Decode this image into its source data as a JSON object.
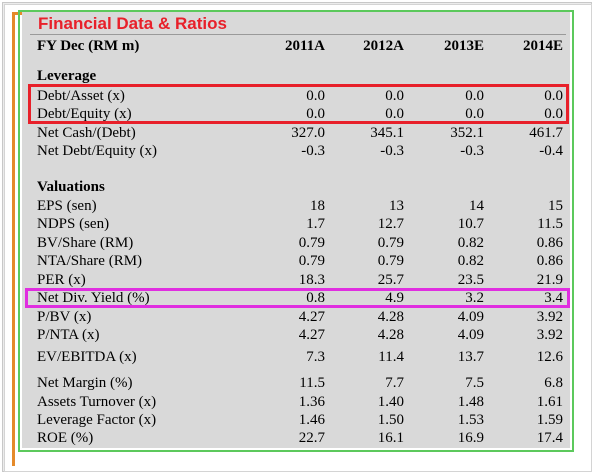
{
  "title": "Financial Data & Ratios",
  "header": {
    "label": "FY Dec (RM m)",
    "columns": [
      "2011A",
      "2012A",
      "2013E",
      "2014E"
    ]
  },
  "sections": [
    {
      "heading": "Leverage",
      "rows": [
        {
          "label": "Debt/Asset (x)",
          "values": [
            "0.0",
            "0.0",
            "0.0",
            "0.0"
          ],
          "highlight": "red"
        },
        {
          "label": "Debt/Equity (x)",
          "values": [
            "0.0",
            "0.0",
            "0.0",
            "0.0"
          ],
          "highlight": "red"
        },
        {
          "label": "Net Cash/(Debt)",
          "values": [
            "327.0",
            "345.1",
            "352.1",
            "461.7"
          ]
        },
        {
          "label": "Net Debt/Equity (x)",
          "values": [
            "-0.3",
            "-0.3",
            "-0.3",
            "-0.4"
          ]
        }
      ]
    },
    {
      "heading": "Valuations",
      "rows": [
        {
          "label": "EPS (sen)",
          "values": [
            "18",
            "13",
            "14",
            "15"
          ]
        },
        {
          "label": "NDPS (sen)",
          "values": [
            "1.7",
            "12.7",
            "10.7",
            "11.5"
          ]
        },
        {
          "label": "BV/Share (RM)",
          "values": [
            "0.79",
            "0.79",
            "0.82",
            "0.86"
          ]
        },
        {
          "label": "NTA/Share (RM)",
          "values": [
            "0.79",
            "0.79",
            "0.82",
            "0.86"
          ]
        },
        {
          "label": "PER (x)",
          "values": [
            "18.3",
            "25.7",
            "23.5",
            "21.9"
          ]
        },
        {
          "label": "Net Div. Yield (%)",
          "values": [
            "0.8",
            "4.9",
            "3.2",
            "3.4"
          ],
          "highlight": "magenta"
        },
        {
          "label": "P/BV (x)",
          "values": [
            "4.27",
            "4.28",
            "4.09",
            "3.92"
          ]
        },
        {
          "label": "P/NTA (x)",
          "values": [
            "4.27",
            "4.28",
            "4.09",
            "3.92"
          ]
        },
        {
          "label": "EV/EBITDA (x)",
          "values": [
            "7.3",
            "11.4",
            "13.7",
            "12.6"
          ]
        }
      ]
    },
    {
      "heading": "",
      "rows": [
        {
          "label": "Net Margin (%)",
          "values": [
            "11.5",
            "7.7",
            "7.5",
            "6.8"
          ]
        },
        {
          "label": "Assets Turnover (x)",
          "values": [
            "1.36",
            "1.40",
            "1.48",
            "1.61"
          ]
        },
        {
          "label": "Leverage Factor (x)",
          "values": [
            "1.46",
            "1.50",
            "1.53",
            "1.59"
          ]
        },
        {
          "label": "ROE (%)",
          "values": [
            "22.7",
            "16.1",
            "16.9",
            "17.4"
          ]
        }
      ]
    }
  ],
  "colors": {
    "title": "#e8202a",
    "panel": "#d9d9d9",
    "green_border": "#5cc95c",
    "orange_border": "#e58a2a",
    "red_highlight": "#e8202a",
    "magenta_highlight": "#e02ee0"
  }
}
